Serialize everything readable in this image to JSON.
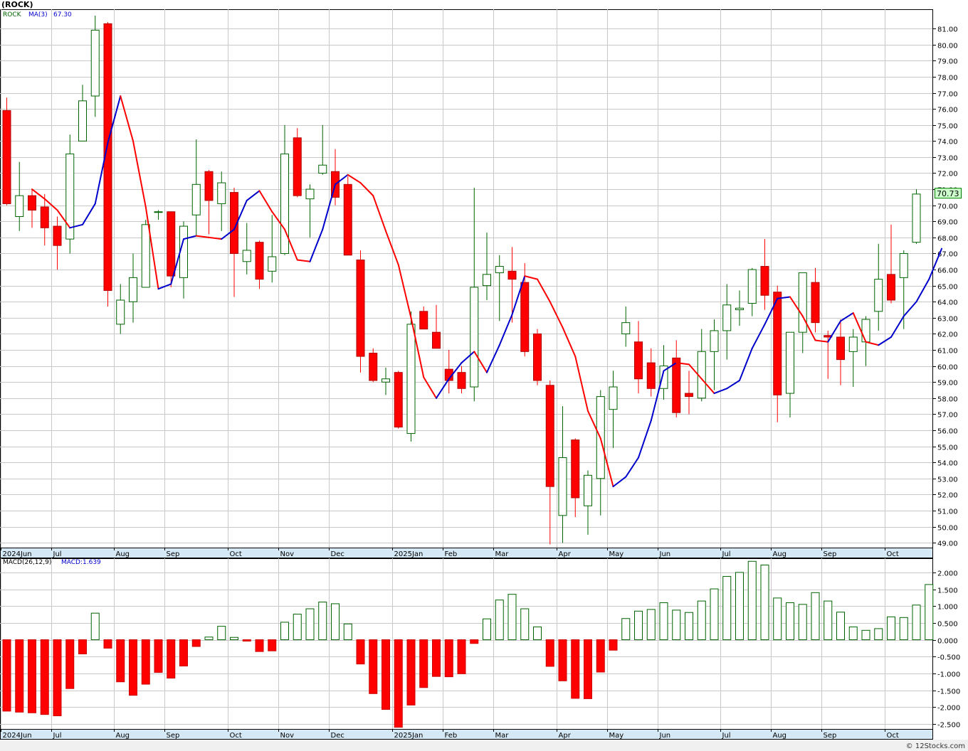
{
  "title": "(ROCK)",
  "legend": {
    "symbol": "ROCK",
    "ma_label": "MA(3)",
    "ma_value": "67.30"
  },
  "macd_legend": {
    "label": "MACD(26,12,9)",
    "value_label": "MACD:1.639"
  },
  "watermark": "© 12Stocks.com",
  "last_price_label": "70.73",
  "colors": {
    "up": "#006400",
    "down": "#ff0000",
    "ma_up": "#0000cc",
    "ma_down": "#ff0000",
    "grid": "#c8c8c8",
    "axis_band": "#d4e8f5",
    "price_tag": "#ccffcc"
  },
  "chart_data": [
    {
      "type": "candlestick",
      "title": "(ROCK)",
      "period": "weekly",
      "ylim": [
        48.7,
        82.2
      ],
      "y_ticks": [
        "49.00",
        "50.00",
        "51.00",
        "52.00",
        "53.00",
        "54.00",
        "55.00",
        "56.00",
        "57.00",
        "58.00",
        "59.00",
        "60.00",
        "61.00",
        "62.00",
        "63.00",
        "64.00",
        "65.00",
        "66.00",
        "67.00",
        "68.00",
        "69.00",
        "70.00",
        "71.00",
        "72.00",
        "73.00",
        "74.00",
        "75.00",
        "76.00",
        "77.00",
        "78.00",
        "79.00",
        "80.00",
        "81.00"
      ],
      "x_labels": [
        {
          "label": "2024Jun",
          "week": 0
        },
        {
          "label": "Jul",
          "week": 4
        },
        {
          "label": "Aug",
          "week": 9
        },
        {
          "label": "Sep",
          "week": 13
        },
        {
          "label": "Oct",
          "week": 18
        },
        {
          "label": "Nov",
          "week": 22
        },
        {
          "label": "Dec",
          "week": 26
        },
        {
          "label": "2025Jan",
          "week": 31
        },
        {
          "label": "Feb",
          "week": 35
        },
        {
          "label": "Mar",
          "week": 39
        },
        {
          "label": "Apr",
          "week": 44
        },
        {
          "label": "May",
          "week": 48
        },
        {
          "label": "Jun",
          "week": 52
        },
        {
          "label": "Jul",
          "week": 57
        },
        {
          "label": "Aug",
          "week": 61
        },
        {
          "label": "Sep",
          "week": 65
        },
        {
          "label": "Oct",
          "week": 70
        }
      ],
      "candles": [
        {
          "o": 75.9,
          "h": 76.7,
          "l": 70.0,
          "c": 70.1
        },
        {
          "o": 69.3,
          "h": 72.7,
          "l": 68.4,
          "c": 70.6
        },
        {
          "o": 70.6,
          "h": 71.0,
          "l": 68.6,
          "c": 69.7
        },
        {
          "o": 69.9,
          "h": 70.7,
          "l": 67.5,
          "c": 68.6
        },
        {
          "o": 68.7,
          "h": 69.3,
          "l": 66.0,
          "c": 67.5
        },
        {
          "o": 67.9,
          "h": 74.4,
          "l": 67.0,
          "c": 73.2
        },
        {
          "o": 74.0,
          "h": 77.5,
          "l": 74.0,
          "c": 76.5
        },
        {
          "o": 76.8,
          "h": 81.8,
          "l": 75.5,
          "c": 80.9
        },
        {
          "o": 81.3,
          "h": 81.4,
          "l": 63.7,
          "c": 64.7
        },
        {
          "o": 62.6,
          "h": 65.1,
          "l": 62.0,
          "c": 64.1
        },
        {
          "o": 64.0,
          "h": 67.0,
          "l": 62.7,
          "c": 65.5
        },
        {
          "o": 64.9,
          "h": 69.1,
          "l": 64.9,
          "c": 68.8
        },
        {
          "o": 69.6,
          "h": 69.7,
          "l": 69.1,
          "c": 69.6
        },
        {
          "o": 69.6,
          "h": 69.6,
          "l": 64.9,
          "c": 65.6
        },
        {
          "o": 65.5,
          "h": 69.0,
          "l": 64.2,
          "c": 68.7
        },
        {
          "o": 69.4,
          "h": 74.1,
          "l": 68.1,
          "c": 71.3
        },
        {
          "o": 72.1,
          "h": 72.2,
          "l": 68.2,
          "c": 70.3
        },
        {
          "o": 70.1,
          "h": 72.1,
          "l": 68.4,
          "c": 71.4
        },
        {
          "o": 70.8,
          "h": 71.1,
          "l": 64.3,
          "c": 67.0
        },
        {
          "o": 66.5,
          "h": 68.9,
          "l": 65.7,
          "c": 67.2
        },
        {
          "o": 67.7,
          "h": 67.8,
          "l": 64.8,
          "c": 65.4
        },
        {
          "o": 65.9,
          "h": 69.4,
          "l": 65.2,
          "c": 66.8
        },
        {
          "o": 67.0,
          "h": 75.0,
          "l": 66.9,
          "c": 73.2
        },
        {
          "o": 74.2,
          "h": 74.8,
          "l": 70.5,
          "c": 70.6
        },
        {
          "o": 70.4,
          "h": 71.3,
          "l": 68.0,
          "c": 71.0
        },
        {
          "o": 72.0,
          "h": 75.0,
          "l": 71.9,
          "c": 72.5
        },
        {
          "o": 72.1,
          "h": 73.5,
          "l": 70.0,
          "c": 70.5
        },
        {
          "o": 71.3,
          "h": 71.8,
          "l": 66.9,
          "c": 66.9
        },
        {
          "o": 66.6,
          "h": 67.2,
          "l": 59.6,
          "c": 60.6
        },
        {
          "o": 60.8,
          "h": 61.1,
          "l": 59.0,
          "c": 59.1
        },
        {
          "o": 59.0,
          "h": 59.9,
          "l": 58.2,
          "c": 59.2
        },
        {
          "o": 59.6,
          "h": 59.7,
          "l": 56.1,
          "c": 56.2
        },
        {
          "o": 55.8,
          "h": 63.4,
          "l": 55.3,
          "c": 62.6
        },
        {
          "o": 63.4,
          "h": 63.7,
          "l": 62.3,
          "c": 62.3
        },
        {
          "o": 62.1,
          "h": 63.8,
          "l": 61.1,
          "c": 61.1
        },
        {
          "o": 59.8,
          "h": 61.0,
          "l": 58.3,
          "c": 59.1
        },
        {
          "o": 59.6,
          "h": 60.0,
          "l": 58.3,
          "c": 58.6
        },
        {
          "o": 58.7,
          "h": 71.1,
          "l": 57.8,
          "c": 64.9
        },
        {
          "o": 65.0,
          "h": 68.3,
          "l": 64.1,
          "c": 65.7
        },
        {
          "o": 65.8,
          "h": 66.9,
          "l": 62.8,
          "c": 66.2
        },
        {
          "o": 65.9,
          "h": 67.4,
          "l": 62.7,
          "c": 65.4
        },
        {
          "o": 65.2,
          "h": 66.4,
          "l": 60.6,
          "c": 60.9
        },
        {
          "o": 62.0,
          "h": 62.3,
          "l": 58.8,
          "c": 59.1
        },
        {
          "o": 58.8,
          "h": 59.1,
          "l": 48.9,
          "c": 52.5
        },
        {
          "o": 50.7,
          "h": 57.5,
          "l": 49.0,
          "c": 54.3
        },
        {
          "o": 55.4,
          "h": 55.5,
          "l": 50.6,
          "c": 51.8
        },
        {
          "o": 51.3,
          "h": 53.5,
          "l": 49.5,
          "c": 53.2
        },
        {
          "o": 53.0,
          "h": 58.5,
          "l": 50.7,
          "c": 58.1
        },
        {
          "o": 57.3,
          "h": 59.7,
          "l": 54.9,
          "c": 58.7
        },
        {
          "o": 62.0,
          "h": 63.7,
          "l": 61.2,
          "c": 62.7
        },
        {
          "o": 61.5,
          "h": 62.8,
          "l": 58.3,
          "c": 59.2
        },
        {
          "o": 60.2,
          "h": 61.1,
          "l": 58.1,
          "c": 58.6
        },
        {
          "o": 58.6,
          "h": 61.3,
          "l": 57.9,
          "c": 60.0
        },
        {
          "o": 60.5,
          "h": 61.6,
          "l": 56.8,
          "c": 57.1
        },
        {
          "o": 58.3,
          "h": 59.7,
          "l": 57.0,
          "c": 58.1
        },
        {
          "o": 58.0,
          "h": 62.3,
          "l": 57.8,
          "c": 60.9
        },
        {
          "o": 60.9,
          "h": 62.9,
          "l": 58.5,
          "c": 62.2
        },
        {
          "o": 62.2,
          "h": 65.1,
          "l": 60.4,
          "c": 63.8
        },
        {
          "o": 63.5,
          "h": 64.7,
          "l": 62.5,
          "c": 63.6
        },
        {
          "o": 63.9,
          "h": 66.1,
          "l": 63.1,
          "c": 66.0
        },
        {
          "o": 66.2,
          "h": 67.9,
          "l": 63.5,
          "c": 64.4
        },
        {
          "o": 64.6,
          "h": 65.0,
          "l": 56.5,
          "c": 58.2
        },
        {
          "o": 58.3,
          "h": 62.1,
          "l": 56.8,
          "c": 62.1
        },
        {
          "o": 62.1,
          "h": 65.8,
          "l": 60.8,
          "c": 65.8
        },
        {
          "o": 65.2,
          "h": 66.1,
          "l": 62.1,
          "c": 62.7
        },
        {
          "o": 61.9,
          "h": 62.2,
          "l": 59.2,
          "c": 61.8
        },
        {
          "o": 61.8,
          "h": 62.9,
          "l": 58.8,
          "c": 60.4
        },
        {
          "o": 60.9,
          "h": 62.3,
          "l": 58.7,
          "c": 61.8
        },
        {
          "o": 61.5,
          "h": 63.1,
          "l": 60.0,
          "c": 62.9
        },
        {
          "o": 63.4,
          "h": 67.6,
          "l": 62.2,
          "c": 65.4
        },
        {
          "o": 65.7,
          "h": 68.8,
          "l": 63.9,
          "c": 64.1
        },
        {
          "o": 65.5,
          "h": 67.2,
          "l": 62.3,
          "c": 67.0
        },
        {
          "o": 67.7,
          "h": 71.0,
          "l": 67.6,
          "c": 70.7
        }
      ],
      "ma": {
        "name": "MA(3)",
        "start": 2,
        "values": [
          71.0,
          70.4,
          69.7,
          68.6,
          68.8,
          70.1,
          73.9,
          76.8,
          74.0,
          69.9,
          64.8,
          65.1,
          67.9,
          68.1,
          68.0,
          67.9,
          68.5,
          70.3,
          70.9,
          69.6,
          68.5,
          66.6,
          66.5,
          68.5,
          71.3,
          71.9,
          71.4,
          70.6,
          68.4,
          66.3,
          63.0,
          59.3,
          58.0,
          59.2,
          60.2,
          60.9,
          59.6,
          61.3,
          63.2,
          65.6,
          65.4,
          64.0,
          62.4,
          60.6,
          57.2,
          55.5,
          52.5,
          53.1,
          54.3,
          56.6,
          59.7,
          60.2,
          60.1,
          59.2,
          58.3,
          58.6,
          59.1,
          61.1,
          62.6,
          64.2,
          64.3,
          63.1,
          61.6,
          61.5,
          62.8,
          63.3,
          61.5,
          61.3,
          61.8,
          63.1,
          64.0,
          65.4,
          67.3
        ]
      }
    },
    {
      "type": "bar",
      "title": "MACD(26,12,9)",
      "ylim": [
        -2.65,
        2.42
      ],
      "y_ticks": [
        "2.000",
        "1.500",
        "1.000",
        "0.500",
        "0.000",
        "-0.500",
        "-1.000",
        "-1.500",
        "-2.000",
        "-2.500"
      ],
      "values": [
        -2.12,
        -2.15,
        -2.17,
        -2.22,
        -2.26,
        -1.45,
        -0.42,
        0.79,
        -0.25,
        -1.25,
        -1.65,
        -1.32,
        -0.97,
        -1.14,
        -0.78,
        -0.2,
        0.08,
        0.4,
        0.07,
        -0.04,
        -0.35,
        -0.33,
        0.52,
        0.76,
        0.92,
        1.12,
        1.07,
        0.47,
        -0.72,
        -1.6,
        -2.07,
        -2.6,
        -1.94,
        -1.42,
        -1.09,
        -1.1,
        -1.01,
        -0.11,
        0.62,
        1.18,
        1.35,
        0.92,
        0.38,
        -0.79,
        -1.22,
        -1.74,
        -1.75,
        -0.96,
        -0.31,
        0.63,
        0.85,
        0.9,
        1.1,
        0.88,
        0.81,
        1.15,
        1.51,
        1.88,
        2.0,
        2.33,
        2.22,
        1.24,
        1.1,
        1.05,
        1.4,
        1.15,
        0.82,
        0.38,
        0.28,
        0.33,
        0.68,
        0.66,
        1.03,
        1.64
      ]
    }
  ]
}
